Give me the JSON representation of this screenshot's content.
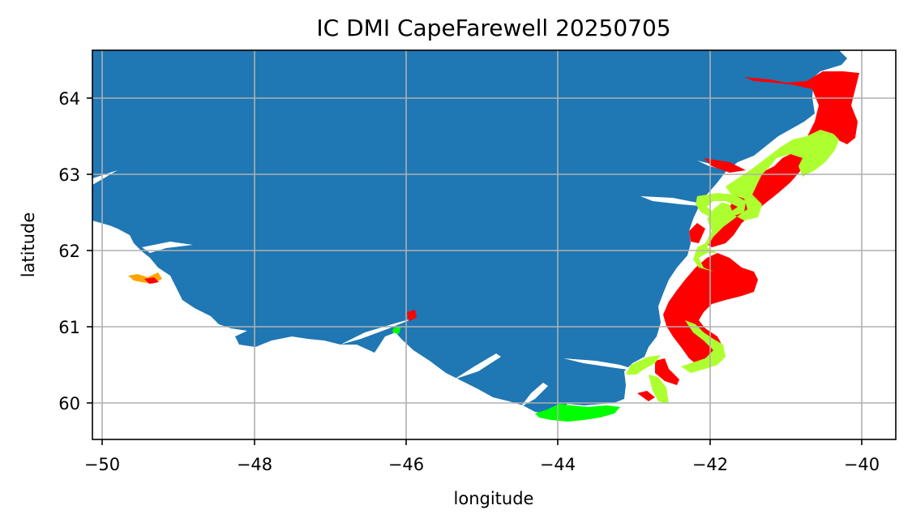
{
  "chart_data": {
    "type": "map",
    "title": "IC DMI CapeFarewell 20250705",
    "xlabel": "longitude",
    "ylabel": "latitude",
    "xlim": [
      -50.1,
      -39.55
    ],
    "ylim": [
      59.52,
      64.65
    ],
    "xticks": [
      -50,
      -48,
      -46,
      -44,
      -42,
      -40
    ],
    "yticks": [
      60,
      61,
      62,
      63,
      64
    ],
    "xtick_labels": [
      "−50",
      "−48",
      "−46",
      "−44",
      "−42",
      "−40"
    ],
    "ytick_labels": [
      "60",
      "61",
      "62",
      "63",
      "64"
    ],
    "grid": true,
    "colors": {
      "land": "#1f77b4",
      "ice_red": "#ff0000",
      "ice_yellowgreen": "#adff2f",
      "ice_green": "#00ff00",
      "ice_orange": "#ffa500",
      "grid": "#b0b0b0"
    }
  }
}
